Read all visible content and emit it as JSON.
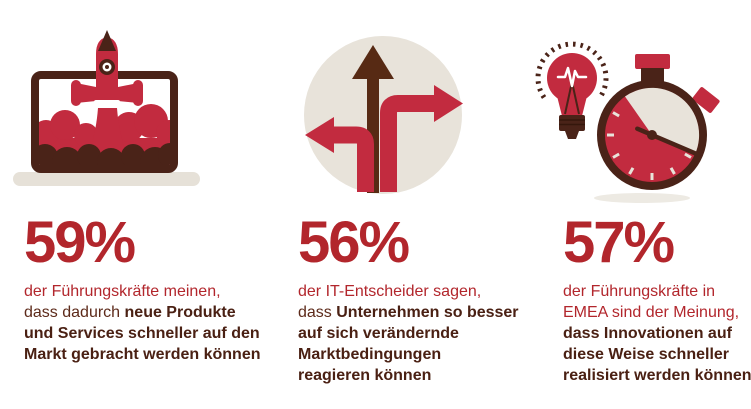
{
  "colors": {
    "white": "#ffffff",
    "text_red": "#b2262c",
    "illustration_red": "#c22b3f",
    "dark_brown": "#4a2318",
    "arrow_brown": "#572a14",
    "text_brown": "#4a2013",
    "plain_brown": "#5d2a1a",
    "beige_circle": "#e8e3da",
    "laptop_base": "#e6e1d8",
    "shadow": "#edeae3"
  },
  "columns": [
    {
      "icon": "laptop-rocket-launch",
      "stat": "59%",
      "lines": [
        [
          {
            "t": "der Führungskräfte meinen,",
            "s": "lead"
          }
        ],
        [
          {
            "t": "dass dadurch ",
            "s": "plain"
          },
          {
            "t": "neue Produkte",
            "s": "bold"
          }
        ],
        [
          {
            "t": "und Services schneller auf den",
            "s": "bold"
          }
        ],
        [
          {
            "t": "Markt gebracht werden können",
            "s": "bold"
          }
        ]
      ]
    },
    {
      "icon": "direction-arrows",
      "stat": "56%",
      "lines": [
        [
          {
            "t": "der IT-Entscheider sagen,",
            "s": "lead"
          }
        ],
        [
          {
            "t": "dass ",
            "s": "plain"
          },
          {
            "t": "Unternehmen so besser",
            "s": "bold"
          }
        ],
        [
          {
            "t": "auf sich verändernde",
            "s": "bold"
          }
        ],
        [
          {
            "t": "Marktbedingungen",
            "s": "bold"
          }
        ],
        [
          {
            "t": "reagieren können",
            "s": "bold"
          }
        ]
      ]
    },
    {
      "icon": "lightbulb-stopwatch",
      "stat": "57%",
      "lines": [
        [
          {
            "t": "der Führungskräfte in",
            "s": "lead"
          }
        ],
        [
          {
            "t": "EMEA sind der Meinung,",
            "s": "lead"
          }
        ],
        [
          {
            "t": "dass Innovationen auf",
            "s": "bold"
          }
        ],
        [
          {
            "t": "diese Weise schneller",
            "s": "bold"
          }
        ],
        [
          {
            "t": "realisiert werden können",
            "s": "bold"
          }
        ]
      ]
    }
  ],
  "chart_data": {
    "type": "table",
    "title": "",
    "categories": [
      "der Führungskräfte meinen, dass dadurch neue Produkte und Services schneller auf den Markt gebracht werden können",
      "der IT-Entscheider sagen, dass Unternehmen so besser auf sich verändernde Marktbedingungen reagieren können",
      "der Führungskräfte in EMEA sind der Meinung, dass Innovationen auf diese Weise schneller realisiert werden können"
    ],
    "values": [
      59,
      56,
      57
    ],
    "unit": "%"
  }
}
